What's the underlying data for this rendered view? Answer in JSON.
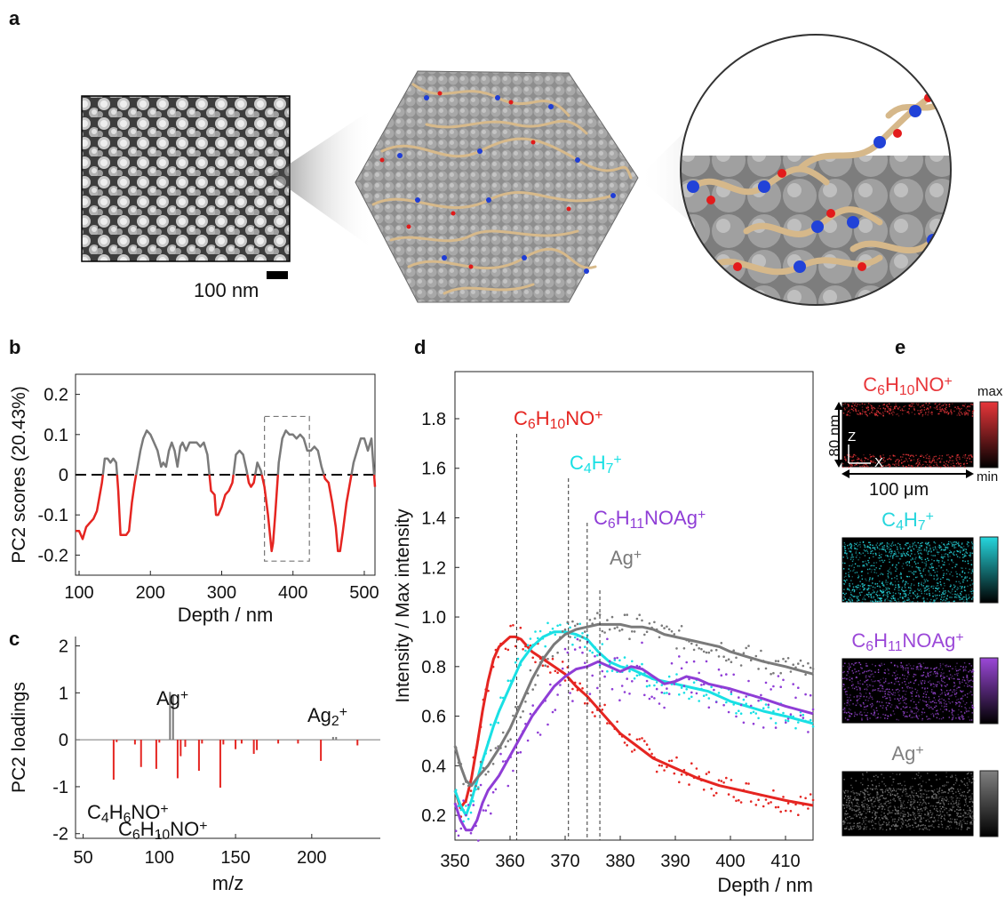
{
  "panels": {
    "a": "a",
    "b": "b",
    "c": "c",
    "d": "d",
    "e": "e"
  },
  "panel_a": {
    "scalebar_label": "100 nm"
  },
  "chart_data": [
    {
      "panel": "b",
      "type": "line",
      "xlabel": "Depth / nm",
      "ylabel": "PC2 scores (20.43%)",
      "xlim": [
        95,
        515
      ],
      "ylim": [
        -0.25,
        0.25
      ],
      "xticks": [
        100,
        200,
        300,
        400,
        500
      ],
      "yticks": [
        0.2,
        0.1,
        0,
        -0.1,
        -0.2
      ],
      "ytick_labels": [
        "0.2",
        "0.1",
        "0",
        "-0.1",
        "-0.2"
      ],
      "highlight_box_x": [
        360,
        423
      ],
      "series": [
        {
          "x": [
            95,
            100,
            105,
            110,
            115,
            120,
            125,
            128,
            132,
            136,
            140,
            144,
            148,
            152,
            155,
            158,
            162,
            166,
            170,
            174,
            178,
            182,
            186,
            190,
            195,
            200,
            205,
            210,
            215,
            218,
            222,
            226,
            230,
            234,
            238,
            242,
            245,
            250,
            255,
            260,
            265,
            270,
            275,
            280,
            285,
            290,
            292,
            295,
            300,
            305,
            310,
            315,
            320,
            325,
            330,
            335,
            338,
            341,
            345,
            350,
            355,
            360,
            365,
            370,
            372,
            375,
            380,
            385,
            390,
            395,
            400,
            405,
            410,
            415,
            420,
            425,
            430,
            435,
            440,
            445,
            450,
            455,
            460,
            463,
            466,
            470,
            475,
            480,
            485,
            490,
            495,
            500,
            505,
            510,
            515
          ],
          "y": [
            -0.14,
            -0.14,
            -0.16,
            -0.13,
            -0.12,
            -0.11,
            -0.09,
            -0.06,
            -0.02,
            0.04,
            0.04,
            0.03,
            0.04,
            0.03,
            -0.04,
            -0.15,
            -0.15,
            -0.15,
            -0.14,
            -0.07,
            -0.02,
            0.02,
            0.06,
            0.09,
            0.11,
            0.1,
            0.08,
            0.06,
            0.02,
            0.03,
            0.02,
            0.06,
            0.08,
            0.06,
            0.02,
            0.07,
            0.08,
            0.06,
            0.08,
            0.08,
            0.08,
            0.07,
            0.08,
            0.05,
            -0.04,
            -0.05,
            -0.1,
            -0.1,
            -0.08,
            -0.05,
            -0.04,
            -0.02,
            0.05,
            0.06,
            0.05,
            0.01,
            -0.02,
            -0.03,
            -0.02,
            0.03,
            0.01,
            -0.03,
            -0.1,
            -0.19,
            -0.17,
            -0.1,
            0.03,
            0.09,
            0.11,
            0.1,
            0.1,
            0.09,
            0.1,
            0.09,
            0.06,
            0.06,
            0.07,
            0.06,
            0.02,
            -0.01,
            -0.02,
            -0.07,
            -0.13,
            -0.19,
            -0.19,
            -0.14,
            -0.07,
            -0.02,
            0.03,
            0.06,
            0.09,
            0.09,
            0.06,
            0.09,
            -0.03
          ]
        }
      ]
    },
    {
      "panel": "c",
      "type": "bar",
      "xlabel": "m/z",
      "ylabel": "PC2 loadings",
      "xlim": [
        45,
        245
      ],
      "ylim": [
        -2.1,
        2.2
      ],
      "xticks": [
        50,
        100,
        150,
        200
      ],
      "yticks": [
        2,
        1,
        0,
        -1,
        -2
      ],
      "ytick_labels": [
        "2",
        "1",
        "0",
        "-1",
        "-2"
      ],
      "annotations": [
        {
          "base": "Ag",
          "sup": "+"
        },
        {
          "base": "Ag",
          "sub": "2",
          "sup": "+"
        },
        {
          "parts": [
            {
              "t": "C"
            },
            {
              "t": "4",
              "sub": true
            },
            {
              "t": "H"
            },
            {
              "t": "6",
              "sub": true
            },
            {
              "t": "NO"
            },
            {
              "t": "+",
              "sup": true
            }
          ]
        },
        {
          "parts": [
            {
              "t": "C"
            },
            {
              "t": "6",
              "sub": true
            },
            {
              "t": "H"
            },
            {
              "t": "10",
              "sub": true
            },
            {
              "t": "NO"
            },
            {
              "t": "+",
              "sup": true
            }
          ]
        }
      ],
      "bars": [
        {
          "mz": 70,
          "v": -0.85
        },
        {
          "mz": 72,
          "v": -0.05
        },
        {
          "mz": 84,
          "v": -0.1
        },
        {
          "mz": 88,
          "v": -0.58
        },
        {
          "mz": 98,
          "v": -0.62
        },
        {
          "mz": 100,
          "v": -0.06
        },
        {
          "mz": 107,
          "v": 1.02
        },
        {
          "mz": 109,
          "v": 0.95
        },
        {
          "mz": 112,
          "v": -0.82
        },
        {
          "mz": 114,
          "v": -0.35
        },
        {
          "mz": 117,
          "v": -0.15
        },
        {
          "mz": 126,
          "v": -0.66
        },
        {
          "mz": 128,
          "v": -0.08
        },
        {
          "mz": 140,
          "v": -1.02
        },
        {
          "mz": 142,
          "v": -0.1
        },
        {
          "mz": 150,
          "v": -0.2
        },
        {
          "mz": 154,
          "v": -0.08
        },
        {
          "mz": 162,
          "v": -0.3
        },
        {
          "mz": 164,
          "v": -0.22
        },
        {
          "mz": 178,
          "v": -0.08
        },
        {
          "mz": 191,
          "v": -0.08
        },
        {
          "mz": 206,
          "v": -0.45
        },
        {
          "mz": 214,
          "v": 0.06
        },
        {
          "mz": 216,
          "v": 0.06
        },
        {
          "mz": 230,
          "v": -0.12
        }
      ]
    },
    {
      "panel": "d",
      "type": "line",
      "xlabel": "Depth / nm",
      "ylabel": "Intensity / Max intensity",
      "xlim": [
        350,
        415
      ],
      "ylim": [
        0.1,
        1.99
      ],
      "xticks": [
        350,
        360,
        370,
        380,
        390,
        400,
        410
      ],
      "yticks": [
        0.2,
        0.4,
        0.6,
        0.8,
        1.0,
        1.2,
        1.4,
        1.6,
        1.8
      ],
      "ytick_labels": [
        "0.2",
        "0.4",
        "0.6",
        "0.8",
        "1.0",
        "1.2",
        "1.4",
        "1.6",
        "1.8"
      ],
      "series": [
        {
          "color": "#e52521",
          "label": {
            "parts": [
              {
                "t": "C"
              },
              {
                "t": "6",
                "sub": true
              },
              {
                "t": "H"
              },
              {
                "t": "10",
                "sub": true
              },
              {
                "t": "NO"
              },
              {
                "t": "+",
                "sup": true
              }
            ]
          },
          "marker_x": 361.2,
          "x": [
            350,
            351,
            352,
            353,
            354,
            355,
            356,
            357,
            358,
            359,
            360,
            361,
            362,
            364,
            366,
            368,
            370,
            372,
            374,
            376,
            378,
            380,
            383,
            386,
            390,
            394,
            398,
            402,
            406,
            410,
            415
          ],
          "y": [
            0.3,
            0.23,
            0.26,
            0.35,
            0.48,
            0.62,
            0.74,
            0.83,
            0.88,
            0.9,
            0.92,
            0.92,
            0.91,
            0.86,
            0.83,
            0.8,
            0.77,
            0.72,
            0.68,
            0.63,
            0.58,
            0.53,
            0.48,
            0.43,
            0.39,
            0.35,
            0.32,
            0.3,
            0.28,
            0.26,
            0.24
          ]
        },
        {
          "color": "#19e0e4",
          "label": {
            "parts": [
              {
                "t": "C"
              },
              {
                "t": "4",
                "sub": true
              },
              {
                "t": "H"
              },
              {
                "t": "7",
                "sub": true
              },
              {
                "t": "+",
                "sup": true
              }
            ]
          },
          "marker_x": 370.6,
          "x": [
            350,
            351,
            352,
            353,
            354,
            355,
            356,
            357,
            358,
            360,
            362,
            364,
            366,
            368,
            370,
            372,
            374,
            376,
            378,
            380,
            382,
            384,
            386,
            388,
            390,
            392,
            394,
            396,
            398,
            400,
            403,
            406,
            410,
            415
          ],
          "y": [
            0.3,
            0.24,
            0.2,
            0.26,
            0.34,
            0.42,
            0.49,
            0.56,
            0.62,
            0.72,
            0.82,
            0.88,
            0.92,
            0.94,
            0.94,
            0.93,
            0.91,
            0.86,
            0.82,
            0.8,
            0.79,
            0.77,
            0.75,
            0.74,
            0.73,
            0.72,
            0.71,
            0.7,
            0.68,
            0.66,
            0.64,
            0.62,
            0.6,
            0.57
          ]
        },
        {
          "color": "#8f3dd6",
          "label": {
            "parts": [
              {
                "t": "C"
              },
              {
                "t": "6",
                "sub": true
              },
              {
                "t": "H"
              },
              {
                "t": "11",
                "sub": true
              },
              {
                "t": "NOAg"
              },
              {
                "t": "+",
                "sup": true
              }
            ]
          },
          "marker_x": 374.0,
          "x": [
            350,
            351,
            352,
            353,
            354,
            355,
            356,
            358,
            360,
            362,
            364,
            366,
            368,
            370,
            372,
            374,
            376,
            378,
            380,
            382,
            384,
            386,
            388,
            390,
            392,
            394,
            396,
            398,
            400,
            403,
            406,
            410,
            415
          ],
          "y": [
            0.25,
            0.18,
            0.14,
            0.14,
            0.18,
            0.25,
            0.3,
            0.36,
            0.44,
            0.52,
            0.6,
            0.66,
            0.72,
            0.76,
            0.79,
            0.8,
            0.82,
            0.8,
            0.78,
            0.8,
            0.79,
            0.76,
            0.73,
            0.74,
            0.76,
            0.75,
            0.73,
            0.72,
            0.71,
            0.69,
            0.67,
            0.64,
            0.61
          ]
        },
        {
          "color": "#7a7a7a",
          "label": {
            "parts": [
              {
                "t": "Ag"
              },
              {
                "t": "+",
                "sup": true
              }
            ]
          },
          "marker_x": 376.3,
          "x": [
            350,
            351,
            352,
            353,
            354,
            356,
            358,
            360,
            362,
            364,
            366,
            368,
            370,
            372,
            374,
            376,
            378,
            380,
            382,
            384,
            386,
            388,
            390,
            392,
            394,
            396,
            398,
            400,
            403,
            406,
            410,
            415
          ],
          "y": [
            0.48,
            0.4,
            0.34,
            0.32,
            0.35,
            0.4,
            0.47,
            0.55,
            0.65,
            0.75,
            0.83,
            0.89,
            0.93,
            0.95,
            0.96,
            0.97,
            0.97,
            0.97,
            0.96,
            0.96,
            0.95,
            0.93,
            0.92,
            0.91,
            0.9,
            0.89,
            0.88,
            0.86,
            0.84,
            0.82,
            0.8,
            0.77
          ]
        }
      ]
    }
  ],
  "panel_e": {
    "colorbar_max": "max",
    "colorbar_min": "min",
    "z_dimension": "80 nm",
    "x_dimension": "100 μm",
    "axis_z": "Z",
    "axis_x": "X",
    "maps": [
      {
        "id": "c6h10no",
        "color": "#e8363a",
        "parts": [
          {
            "t": "C"
          },
          {
            "t": "6",
            "sub": true
          },
          {
            "t": "H"
          },
          {
            "t": "10",
            "sub": true
          },
          {
            "t": "NO"
          },
          {
            "t": "+",
            "sup": true
          }
        ]
      },
      {
        "id": "c4h7",
        "color": "#26d6dd",
        "parts": [
          {
            "t": "C"
          },
          {
            "t": "4",
            "sub": true
          },
          {
            "t": "H"
          },
          {
            "t": "7",
            "sub": true
          },
          {
            "t": "+",
            "sup": true
          }
        ]
      },
      {
        "id": "c6h11noag",
        "color": "#9b48d8",
        "parts": [
          {
            "t": "C"
          },
          {
            "t": "6",
            "sub": true
          },
          {
            "t": "H"
          },
          {
            "t": "11",
            "sub": true
          },
          {
            "t": "NOAg"
          },
          {
            "t": "+",
            "sup": true
          }
        ]
      },
      {
        "id": "ag",
        "color": "#808080",
        "parts": [
          {
            "t": "Ag"
          },
          {
            "t": "+",
            "sup": true
          }
        ]
      }
    ]
  }
}
